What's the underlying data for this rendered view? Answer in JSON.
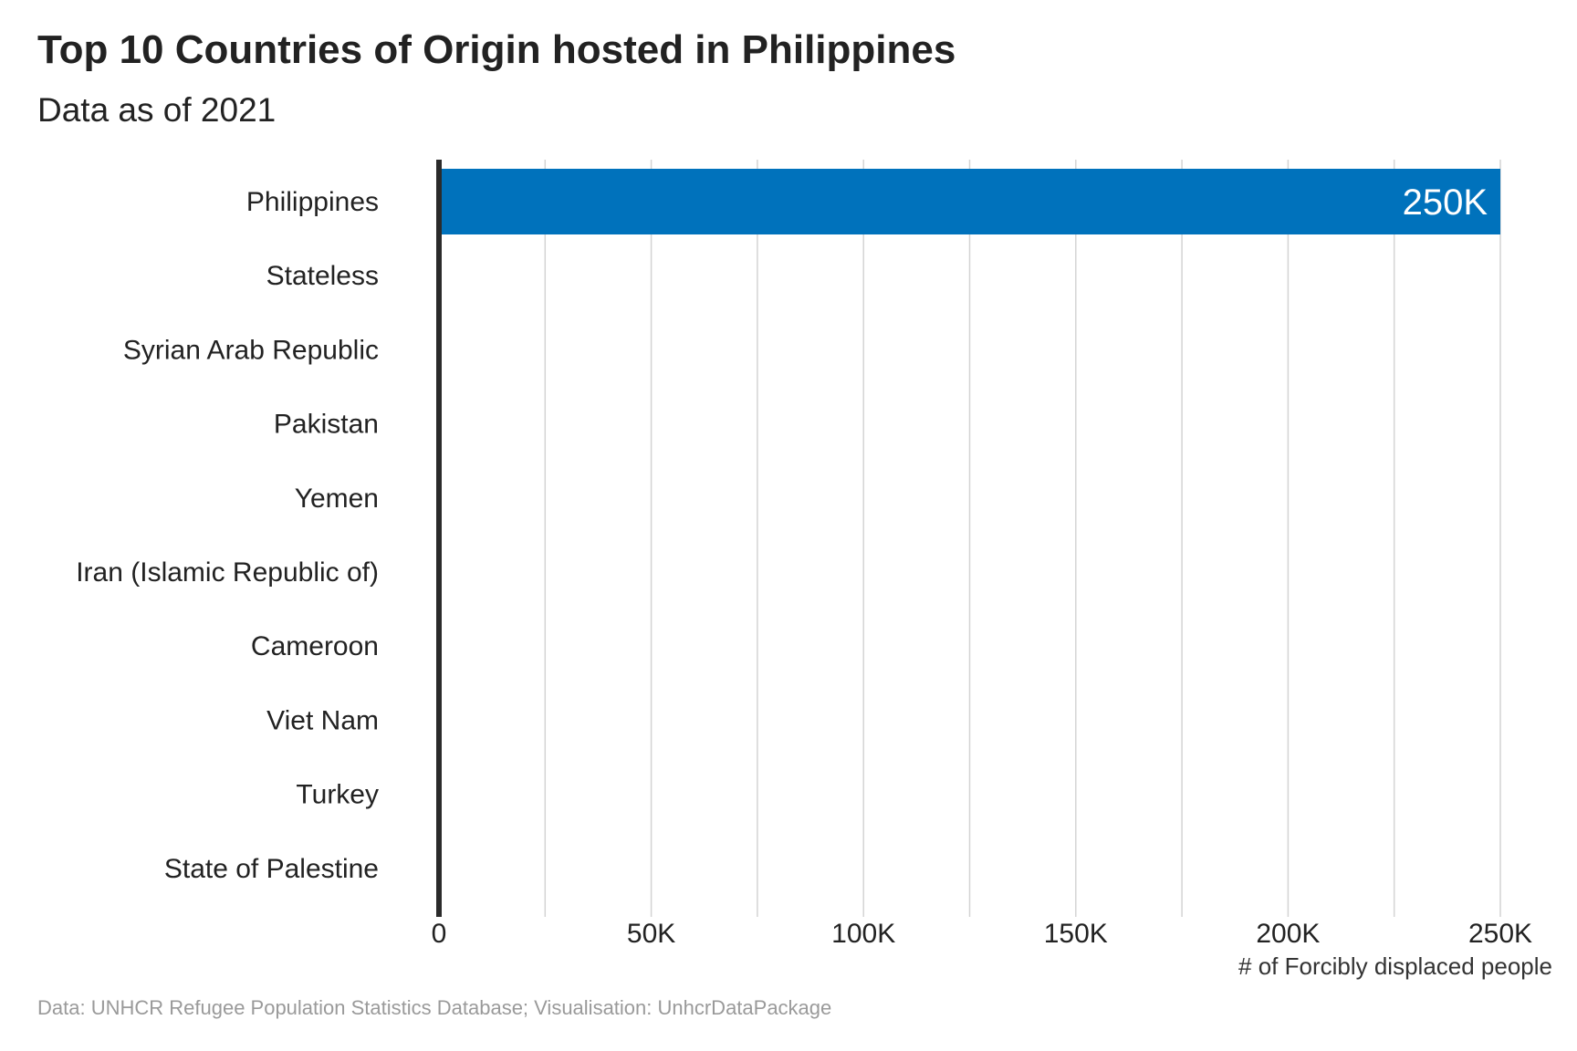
{
  "chart_data": {
    "type": "bar",
    "orientation": "horizontal",
    "title": "Top 10 Countries of Origin hosted in Philippines",
    "subtitle": "Data as of 2021",
    "categories": [
      "Philippines",
      "Stateless",
      "Syrian Arab Republic",
      "Pakistan",
      "Yemen",
      "Iran (Islamic Republic of)",
      "Cameroon",
      "Viet Nam",
      "Turkey",
      "State of Palestine"
    ],
    "values": [
      250000,
      400,
      200,
      150,
      100,
      80,
      60,
      50,
      40,
      30
    ],
    "data_labels": [
      "250K",
      "",
      "",
      "",
      "",
      "",
      "",
      "",
      "",
      ""
    ],
    "xlabel": "# of Forcibly displaced people",
    "ylabel": "",
    "xlim": [
      0,
      250000
    ],
    "xticks": [
      0,
      50000,
      100000,
      150000,
      200000,
      250000
    ],
    "xtick_labels": [
      "0",
      "50K",
      "100K",
      "150K",
      "200K",
      "250K"
    ],
    "minor_grid": [
      25000,
      75000,
      125000,
      175000,
      225000
    ],
    "grid": true,
    "bar_color": "#0072BC",
    "caption": "Data: UNHCR Refugee Population Statistics Database; Visualisation: UnhcrDataPackage"
  }
}
